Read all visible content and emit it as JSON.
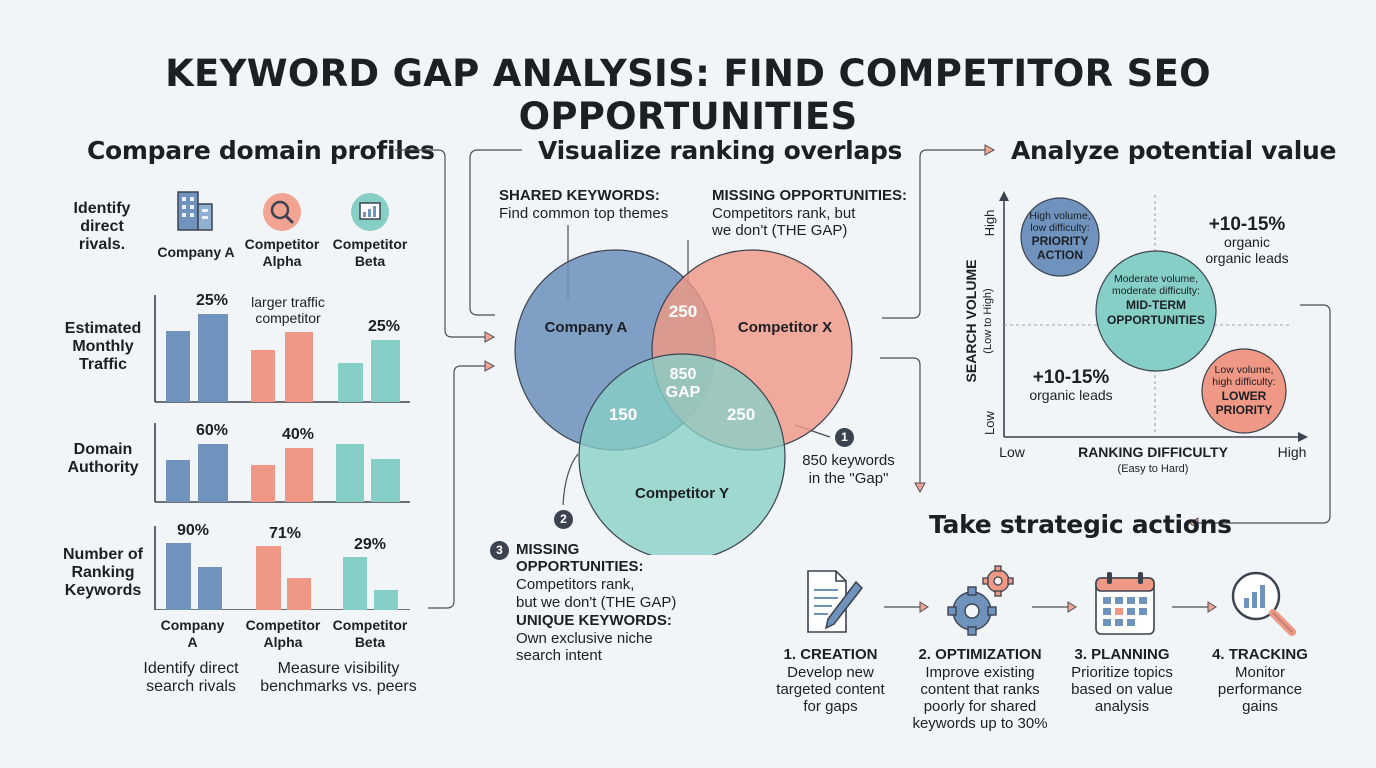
{
  "title": "KEYWORD GAP ANALYSIS: FIND COMPETITOR SEO OPPORTUNITIES",
  "colors": {
    "blue": "#6f93bd",
    "salmon": "#ef9885",
    "teal": "#86cfc6",
    "dark": "#3c4350"
  },
  "left": {
    "heading": "Compare domain profiles",
    "rivals_label": "Identify direct rivals.",
    "companies": [
      "Company A",
      "Competitor Alpha",
      "Competitor Beta"
    ],
    "company_icons": [
      "building-icon",
      "magnifier-icon",
      "dashboard-icon"
    ],
    "traffic": {
      "label": "Estimated Monthly Traffic",
      "pct_a": "25%",
      "note": "larger traffic competitor",
      "pct_beta": "25%"
    },
    "authority": {
      "label": "Domain Authority",
      "pct_a": "60%",
      "pct_alpha": "40%"
    },
    "keywords": {
      "label": "Number of Ranking Keywords",
      "pct_a": "90%",
      "pct_alpha": "71%",
      "pct_beta": "29%"
    },
    "x_labels": [
      "Company A",
      "Competitor Alpha",
      "Competitor Beta"
    ],
    "caption_1": "Identify direct search rivals",
    "caption_2": "Measure visibility benchmarks vs. peers"
  },
  "middle": {
    "heading": "Visualize ranking overlaps",
    "shared_title": "SHARED KEYWORDS:",
    "shared_desc": "Find common top themes",
    "missing_title": "MISSING OPPORTUNITIES:",
    "missing_desc_1": "Competitors rank, but",
    "missing_desc_2": "we don't (THE GAP)",
    "circle_a": "Company A",
    "circle_x": "Competitor X",
    "circle_y": "Competitor Y",
    "ax": "250",
    "ay": "150",
    "xy": "250",
    "center_num": "850",
    "center_label": "GAP",
    "callout_1_num": "1",
    "callout_1_text_1": "850 keywords",
    "callout_1_text_2": "in the \"Gap\"",
    "callout_2_num": "2",
    "callout_3_num": "3",
    "callout_3_title": "MISSING OPPORTUNITIES:",
    "callout_3_desc_1": "Competitors rank,",
    "callout_3_desc_2": "but we don't (THE GAP)",
    "unique_title": "UNIQUE KEYWORDS:",
    "unique_desc_1": "Own exclusive niche",
    "unique_desc_2": "search intent"
  },
  "right": {
    "heading": "Analyze potential value",
    "y_axis": "SEARCH VOLUME",
    "y_axis_sub": "(Low to High)",
    "y_high": "High",
    "y_low": "Low",
    "x_axis": "RANKING DIFFICULTY",
    "x_axis_sub": "(Easy to Hard)",
    "x_low": "Low",
    "x_high": "High",
    "priority_sub_1": "High volume,",
    "priority_sub_2": "low difficulty:",
    "priority_title_1": "PRIORITY",
    "priority_title_2": "ACTION",
    "mid_sub_1": "Moderate volume,",
    "mid_sub_2": "moderate difficulty:",
    "mid_title_1": "MID-TERM",
    "mid_title_2": "OPPORTUNITIES",
    "low_sub_1": "Low volume,",
    "low_sub_2": "high difficulty:",
    "low_title_1": "LOWER",
    "low_title_2": "PRIORITY",
    "tr_pct": "+10-15%",
    "tr_1": "organic",
    "tr_2": "organic leads",
    "bl_pct": "+10-15%",
    "bl_1": "organic leads"
  },
  "actions": {
    "heading": "Take strategic actions",
    "steps": [
      {
        "icon": "document-pen-icon",
        "title": "1. CREATION",
        "desc": [
          "Develop new",
          "targeted content",
          "for gaps"
        ]
      },
      {
        "icon": "gears-icon",
        "title": "2. OPTIMIZATION",
        "desc": [
          "Improve existing",
          "content that ranks",
          "poorly for shared",
          "keywords up to 30%"
        ]
      },
      {
        "icon": "calendar-icon",
        "title": "3. PLANNING",
        "desc": [
          "Prioritize topics",
          "based on value",
          "analysis"
        ]
      },
      {
        "icon": "magnifier-chart-icon",
        "title": "4. TRACKING",
        "desc": [
          "Monitor",
          "performance",
          "gains"
        ]
      }
    ]
  }
}
